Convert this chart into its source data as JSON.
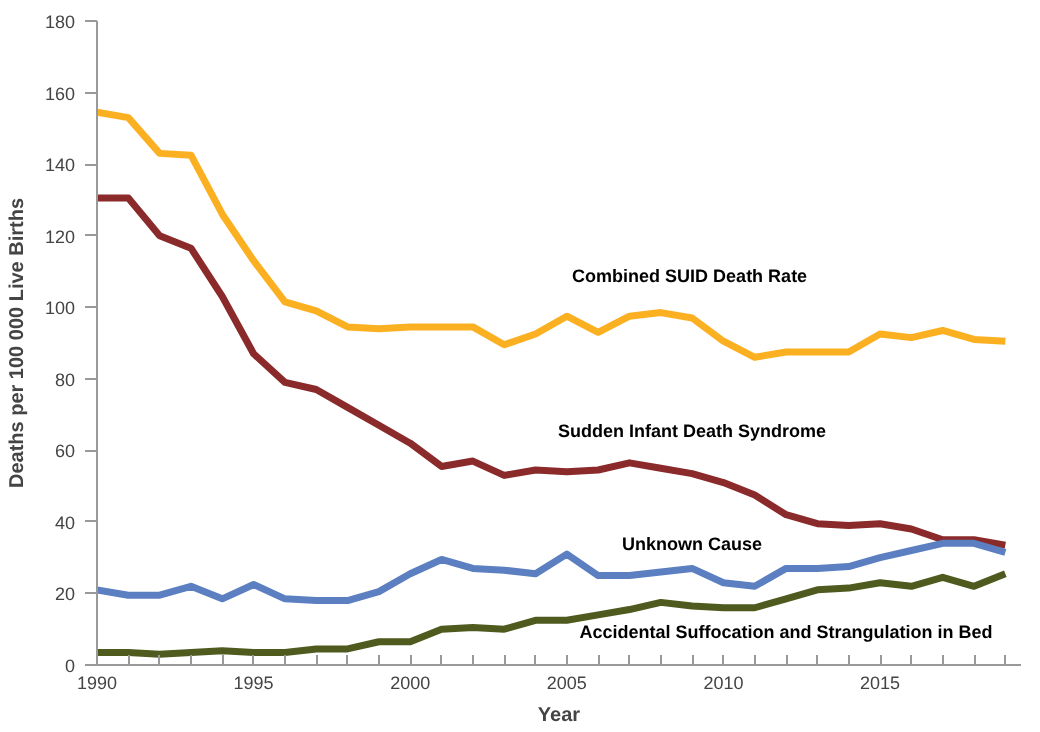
{
  "chart_data": {
    "type": "line",
    "xlabel": "Year",
    "ylabel": "Deaths per 100 000 Live Births",
    "x": [
      1990,
      1991,
      1992,
      1993,
      1994,
      1995,
      1996,
      1997,
      1998,
      1999,
      2000,
      2001,
      2002,
      2003,
      2004,
      2005,
      2006,
      2007,
      2008,
      2009,
      2010,
      2011,
      2012,
      2013,
      2014,
      2015,
      2016,
      2017,
      2018,
      2019
    ],
    "series": [
      {
        "name": "Combined SUID Death  Rate",
        "color": "#fbb021",
        "values": [
          154.5,
          153,
          143,
          142.5,
          126,
          113,
          101.5,
          99,
          94.5,
          94,
          94.5,
          94.5,
          94.5,
          89.5,
          92.5,
          97.5,
          93,
          97.5,
          98.5,
          97,
          90.5,
          86,
          87.5,
          87.5,
          87.5,
          92.5,
          91.5,
          93.5,
          91,
          90.5
        ]
      },
      {
        "name": "Sudden Infant Death Syndrome",
        "color": "#8b2a2a",
        "values": [
          130.5,
          130.5,
          120,
          116.5,
          103,
          87,
          79,
          77,
          72,
          67,
          62,
          55.5,
          57,
          53,
          54.5,
          54,
          54.5,
          56.5,
          55,
          53.5,
          51,
          47.5,
          42,
          39.5,
          39,
          39.5,
          38,
          35,
          35,
          33.5
        ]
      },
      {
        "name": "Unknown Cause",
        "color": "#5b7fc0",
        "values": [
          21,
          19.5,
          19.5,
          22,
          18.5,
          22.5,
          18.5,
          18,
          18,
          20.5,
          25.5,
          29.5,
          27,
          26.5,
          25.5,
          31,
          25,
          25,
          26,
          27,
          23,
          22,
          27,
          27,
          27.5,
          30,
          32,
          34,
          34,
          31.5
        ]
      },
      {
        "name": "Accidental Suffocation and Strangulation in Bed",
        "color": "#4e5a1e",
        "values": [
          3.5,
          3.5,
          3,
          3.5,
          4,
          3.5,
          3.5,
          4.5,
          4.5,
          6.5,
          6.5,
          10,
          10.5,
          10,
          12.5,
          12.5,
          14,
          15.5,
          17.5,
          16.5,
          16,
          16,
          18.5,
          21,
          21.5,
          23,
          22,
          24.5,
          22,
          25.5
        ]
      }
    ],
    "xlim": [
      1990,
      2019.5
    ],
    "xticks": [
      1990,
      {
        "value": 1991,
        "label": null
      },
      {
        "value": 1992,
        "label": null
      },
      {
        "value": 1993,
        "label": null
      },
      {
        "value": 1994,
        "label": null
      },
      1995,
      {
        "value": 1996,
        "label": null
      },
      {
        "value": 1997,
        "label": null
      },
      {
        "value": 1998,
        "label": null
      },
      {
        "value": 1999,
        "label": null
      },
      2000,
      {
        "value": 2001,
        "label": null
      },
      {
        "value": 2002,
        "label": null
      },
      {
        "value": 2003,
        "label": null
      },
      {
        "value": 2004,
        "label": null
      },
      2005,
      {
        "value": 2006,
        "label": null
      },
      {
        "value": 2007,
        "label": null
      },
      {
        "value": 2008,
        "label": null
      },
      {
        "value": 2009,
        "label": null
      },
      2010,
      {
        "value": 2011,
        "label": null
      },
      {
        "value": 2012,
        "label": null
      },
      {
        "value": 2013,
        "label": null
      },
      {
        "value": 2014,
        "label": null
      },
      2015,
      {
        "value": 2016,
        "label": null
      },
      {
        "value": 2017,
        "label": null
      },
      {
        "value": 2018,
        "label": null
      },
      {
        "value": 2019,
        "label": null
      }
    ],
    "ylim": [
      0,
      180
    ],
    "yticks": [
      0,
      20,
      40,
      60,
      80,
      100,
      120,
      140,
      160,
      180
    ],
    "grid": false,
    "marker": "none",
    "line_style": "solid"
  }
}
